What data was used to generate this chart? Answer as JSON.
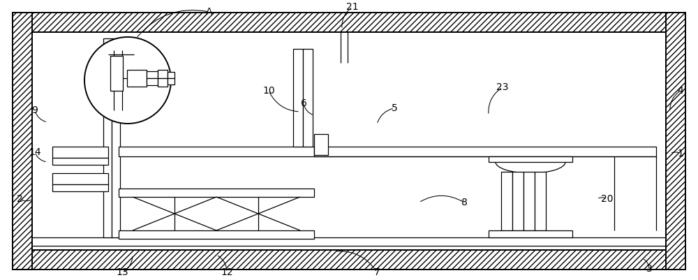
{
  "fig_width": 10.0,
  "fig_height": 4.01,
  "dpi": 100,
  "bg": "#ffffff",
  "lc": "#000000",
  "wall_hatch": "////",
  "labels": {
    "A": [
      300,
      17,
      195,
      55
    ],
    "1": [
      975,
      220,
      960,
      220
    ],
    "2": [
      28,
      285,
      47,
      285
    ],
    "3": [
      930,
      385,
      920,
      370
    ],
    "4": [
      975,
      130,
      960,
      160
    ],
    "5": [
      565,
      155,
      540,
      178
    ],
    "6": [
      435,
      148,
      450,
      165
    ],
    "7": [
      540,
      390,
      480,
      360
    ],
    "8": [
      665,
      290,
      600,
      290
    ],
    "9": [
      50,
      158,
      68,
      175
    ],
    "10": [
      385,
      130,
      430,
      160
    ],
    "12": [
      325,
      390,
      310,
      365
    ],
    "13": [
      175,
      390,
      190,
      365
    ],
    "14": [
      50,
      218,
      68,
      232
    ],
    "20": [
      870,
      285,
      855,
      285
    ],
    "21": [
      505,
      10,
      490,
      42
    ],
    "23": [
      720,
      125,
      700,
      165
    ]
  }
}
